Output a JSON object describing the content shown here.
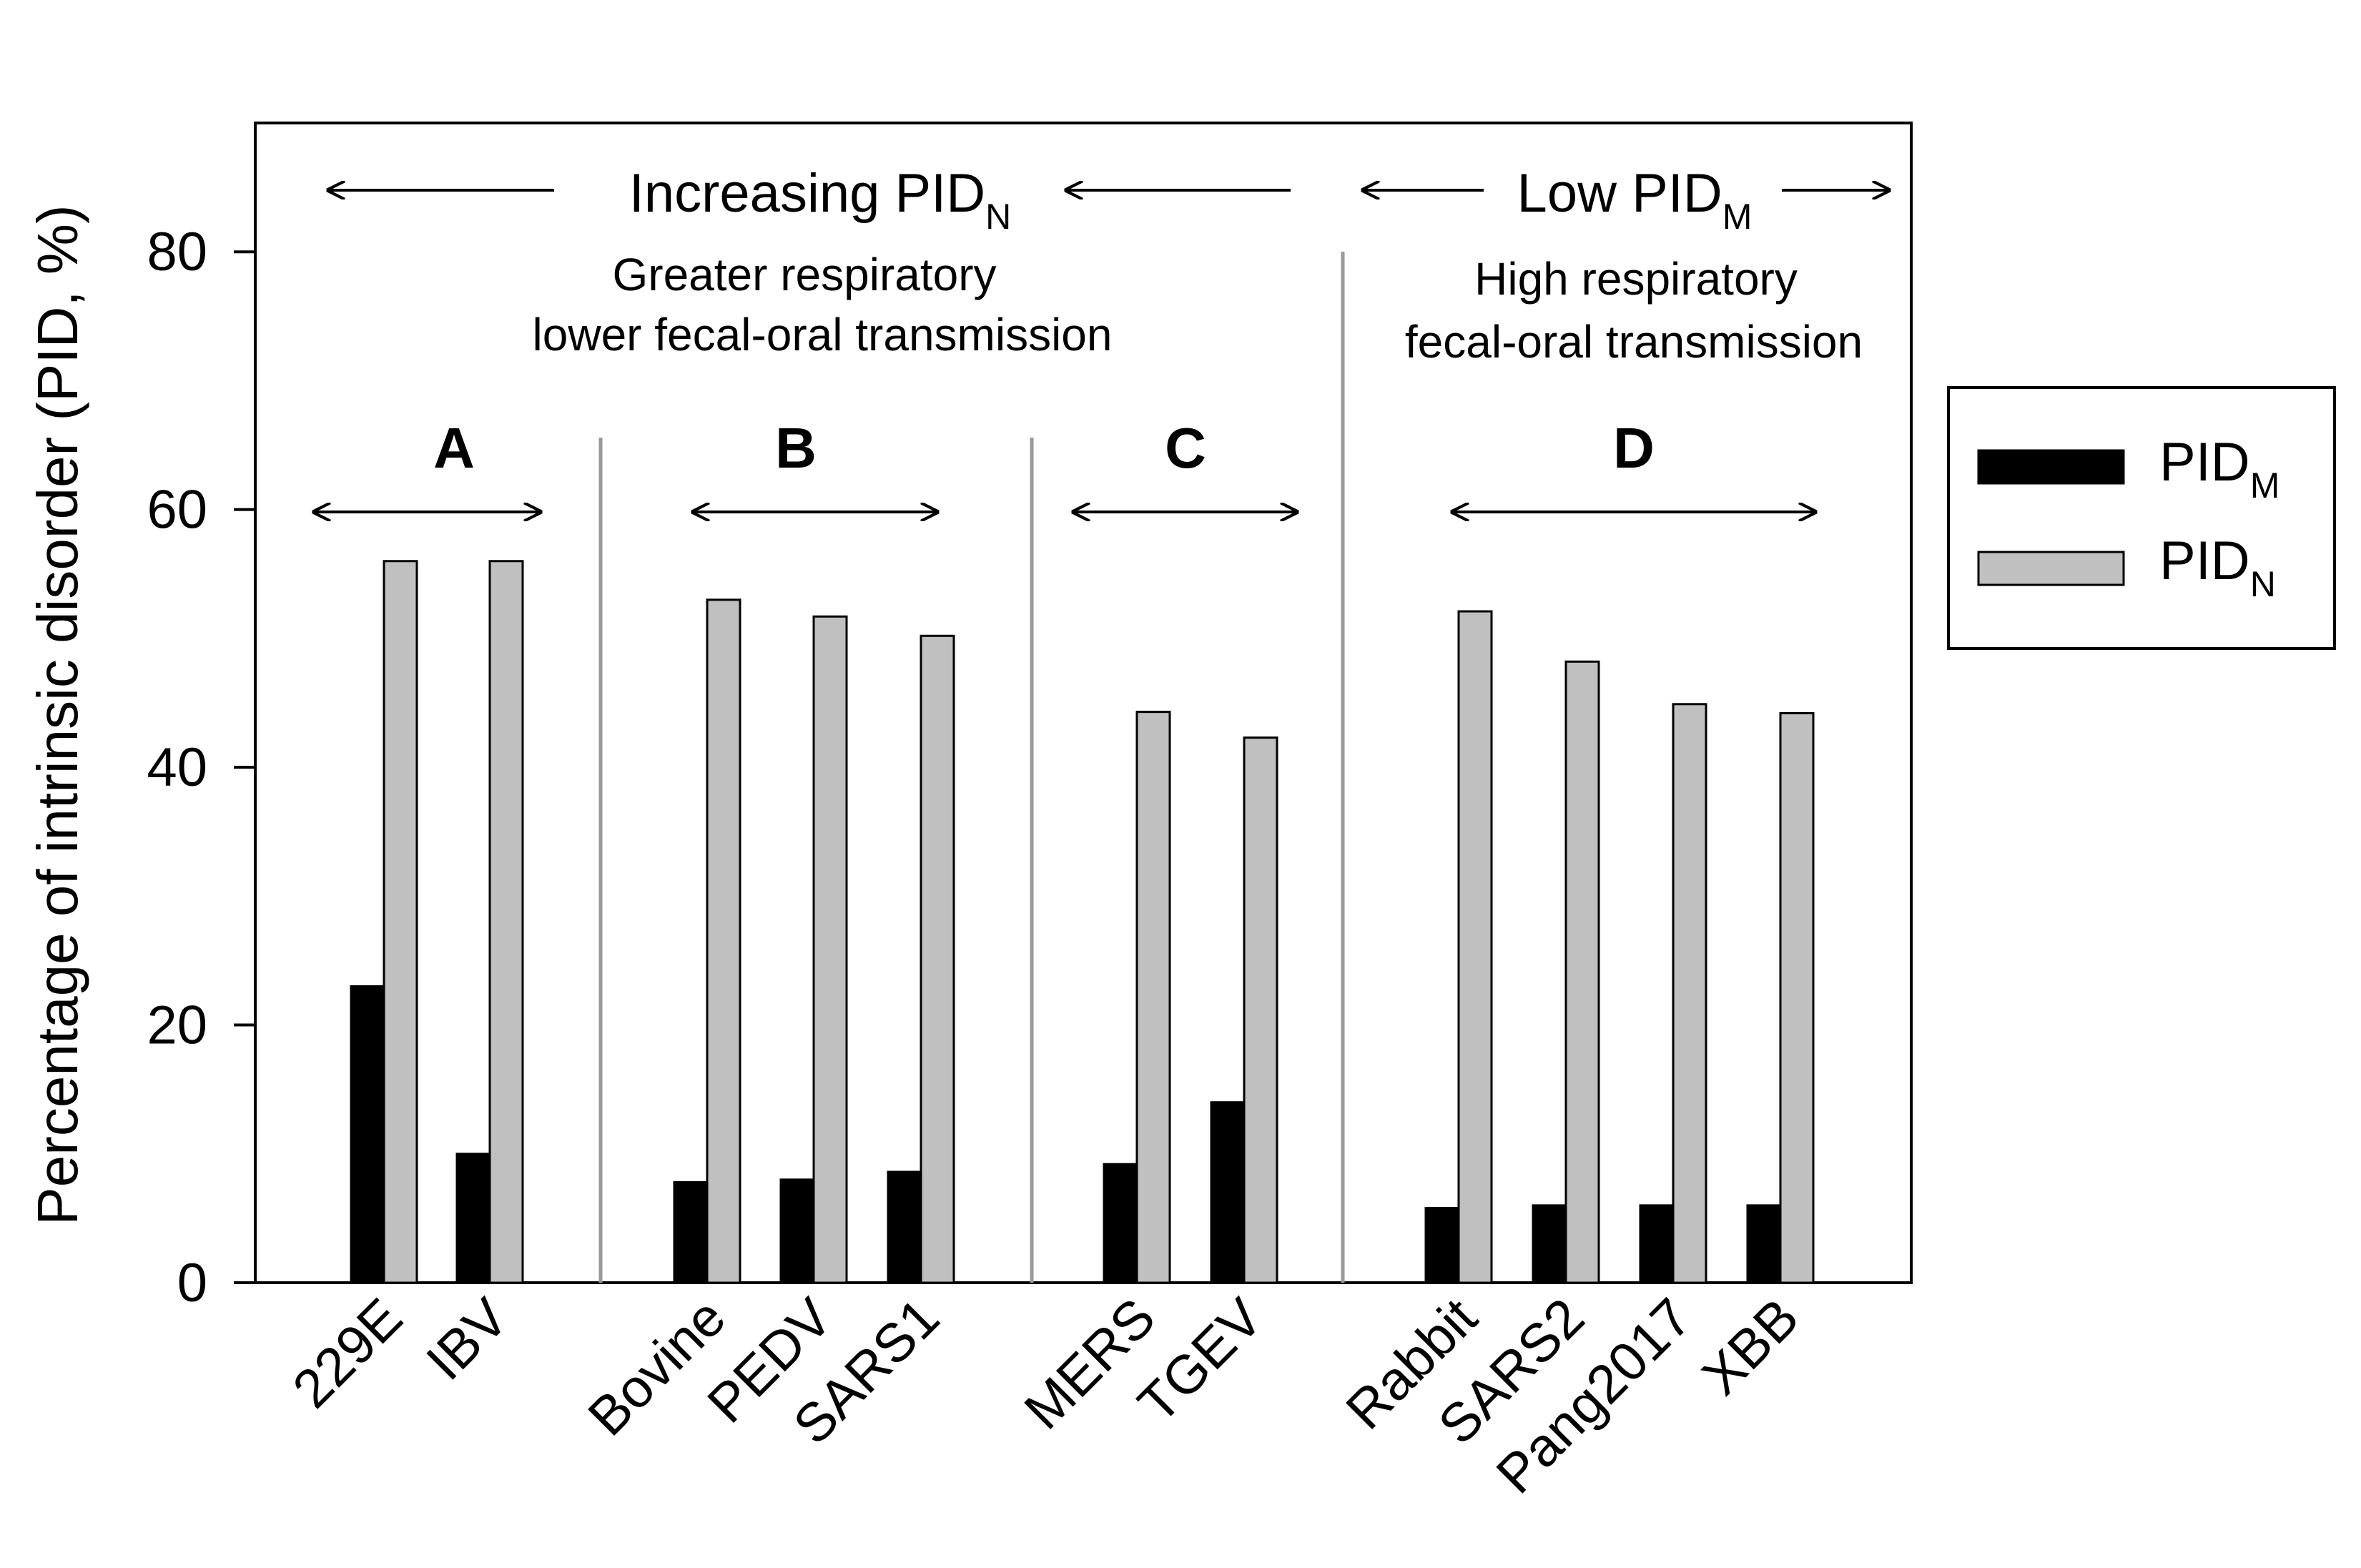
{
  "chart_data": {
    "type": "bar",
    "ylabel": "Percentage of intrinsic disorder (PID, %)",
    "ylim": [
      0,
      90
    ],
    "yticks": [
      "0",
      "20",
      "40",
      "60",
      "80"
    ],
    "grid": false,
    "legend_position": "right",
    "categories": [
      "229E",
      "IBV",
      "Bovine",
      "PEDV",
      "SARS1",
      "MERS",
      "TGEV",
      "Rabbit",
      "SARS2",
      "Pang2017",
      "XBB"
    ],
    "series": [
      {
        "name": "PID",
        "subscript": "M",
        "color": "#000000",
        "values": [
          23,
          10,
          7.8,
          8,
          8.6,
          9.2,
          14,
          5.8,
          6,
          6,
          6
        ]
      },
      {
        "name": "PID",
        "subscript": "N",
        "color": "#c0c0c0",
        "values": [
          56,
          56,
          53,
          51.7,
          50.2,
          44.3,
          42.3,
          52.1,
          48.2,
          44.9,
          44.2
        ]
      }
    ],
    "groups": [
      {
        "label": "A",
        "members": [
          "229E",
          "IBV"
        ]
      },
      {
        "label": "B",
        "members": [
          "Bovine",
          "PEDV",
          "SARS1"
        ]
      },
      {
        "label": "C",
        "members": [
          "MERS",
          "TGEV"
        ]
      },
      {
        "label": "D",
        "members": [
          "Rabbit",
          "SARS2",
          "Pang2017",
          "XBB"
        ]
      }
    ],
    "annotations": {
      "left_arrow_label": "Increasing PID",
      "left_arrow_sub": "N",
      "left_line1": "Greater respiratory",
      "left_line2": "lower fecal-oral transmission",
      "right_arrow_label": "Low PID",
      "right_arrow_sub": "M",
      "right_line1": "High respiratory",
      "right_line2": "fecal-oral transmission"
    }
  }
}
